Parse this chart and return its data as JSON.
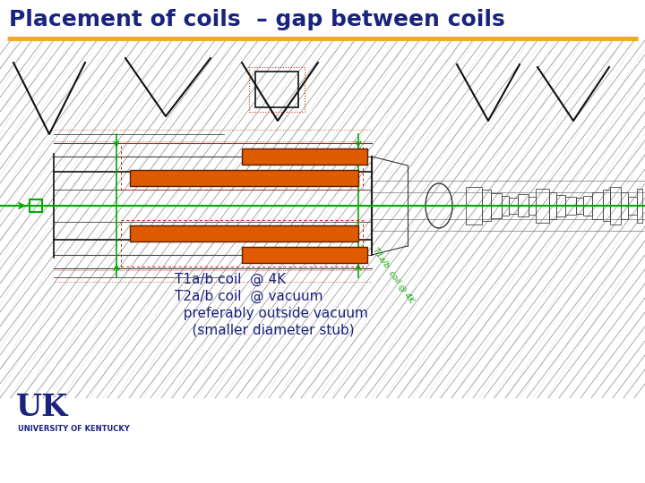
{
  "title": "Placement of coils  – gap between coils",
  "title_color": "#1a237e",
  "title_fontsize": 18,
  "separator_color": "#f5a623",
  "bg_color": "#ffffff",
  "annotation_lines": [
    "T1a/b coil  @ 4K",
    "T2a/b coil  @ vacuum",
    "  preferably outside vacuum",
    "    (smaller diameter stub)"
  ],
  "annotation_color": "#1a237e",
  "annotation_fontsize": 11,
  "uk_color": "#1a237e",
  "coil_color": "#e05a00",
  "coil_outline": "#5a2000",
  "green_color": "#00aa00",
  "cad_dark": "#222222",
  "cad_red": "#cc0000",
  "cad_gray": "#888888"
}
